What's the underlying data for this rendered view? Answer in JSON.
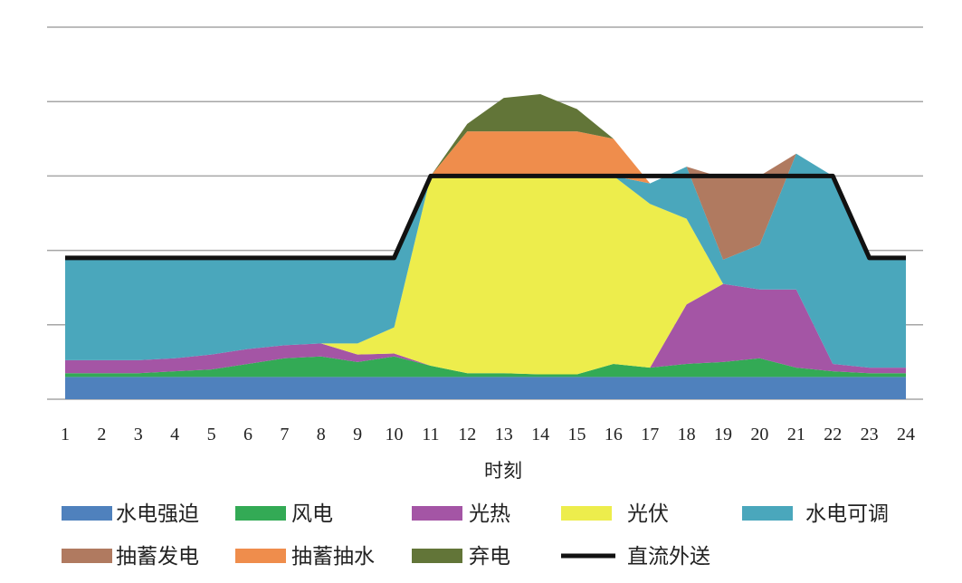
{
  "chart_data": {
    "type": "area",
    "title": "",
    "xlabel": "时刻",
    "ylabel": "",
    "x": [
      1,
      2,
      3,
      4,
      5,
      6,
      7,
      8,
      9,
      10,
      11,
      12,
      13,
      14,
      15,
      16,
      17,
      18,
      19,
      20,
      21,
      22,
      23,
      24
    ],
    "ylim": [
      0,
      100
    ],
    "grid": true,
    "legend_placement": "bottom",
    "series": [
      {
        "name": "水电强迫",
        "color": "#4f81bd",
        "values": [
          6,
          6,
          6,
          6,
          6,
          6,
          6,
          6,
          6,
          6,
          6,
          6,
          6,
          6,
          6,
          6,
          6,
          6,
          6,
          6,
          6,
          6,
          6,
          6
        ]
      },
      {
        "name": "风电",
        "color": "#33aa55",
        "values": [
          1,
          1,
          1,
          1.5,
          2,
          3.5,
          5,
          5.5,
          4,
          5.5,
          3,
          1,
          1,
          0.7,
          0.7,
          3.5,
          2.5,
          3.5,
          4,
          5,
          2.5,
          1.5,
          1,
          1
        ]
      },
      {
        "name": "光热",
        "color": "#a455a5",
        "values": [
          3.5,
          3.5,
          3.5,
          3.5,
          4,
          4,
          3.5,
          3.5,
          2,
          0.8,
          0,
          0,
          0,
          0,
          0,
          0,
          0,
          16,
          21,
          18.5,
          21,
          2,
          1.5,
          1.5
        ]
      },
      {
        "name": "光伏",
        "color": "#eded4c",
        "values": [
          0,
          0,
          0,
          0,
          0,
          0,
          0,
          0,
          3,
          7,
          51,
          53,
          53,
          53.3,
          53.3,
          50.5,
          44,
          23,
          0,
          0,
          0,
          0,
          0,
          0
        ]
      },
      {
        "name": "水电可调",
        "color": "#4aa7bc",
        "values": [
          27,
          27,
          27,
          26.5,
          25.5,
          24,
          23,
          22.5,
          22.5,
          18.2,
          0,
          0,
          0,
          0,
          0,
          0,
          5.5,
          14,
          6.5,
          12,
          36.5,
          50.5,
          29.5,
          29.5
        ]
      },
      {
        "name": "抽蓄发电",
        "color": "#b07a60",
        "values": [
          0,
          0,
          0,
          0,
          0,
          0,
          0,
          0,
          0,
          0,
          0,
          0,
          0,
          0,
          0,
          0,
          0,
          0,
          22,
          18.5,
          0,
          0,
          0,
          0
        ]
      },
      {
        "name": "抽蓄抽水",
        "color": "#ef8d4c",
        "values": [
          0,
          0,
          0,
          0,
          0,
          0,
          0,
          0,
          0,
          0,
          0,
          12,
          12,
          12,
          12,
          10,
          0,
          0,
          0,
          0,
          0,
          0,
          0,
          0
        ]
      },
      {
        "name": "弃电",
        "color": "#627538",
        "values": [
          0,
          0,
          0,
          0,
          0,
          0,
          0,
          0,
          0,
          0,
          0,
          2,
          9,
          10,
          6,
          0,
          0,
          0,
          0,
          0,
          0,
          0,
          0,
          0
        ]
      },
      {
        "name": "直流外送",
        "color": "#111111",
        "type": "line",
        "values": [
          38,
          38,
          38,
          38,
          38,
          38,
          38,
          38,
          38,
          38,
          60,
          60,
          60,
          60,
          60,
          60,
          60,
          60,
          60,
          60,
          60,
          60,
          38,
          38
        ]
      }
    ]
  }
}
